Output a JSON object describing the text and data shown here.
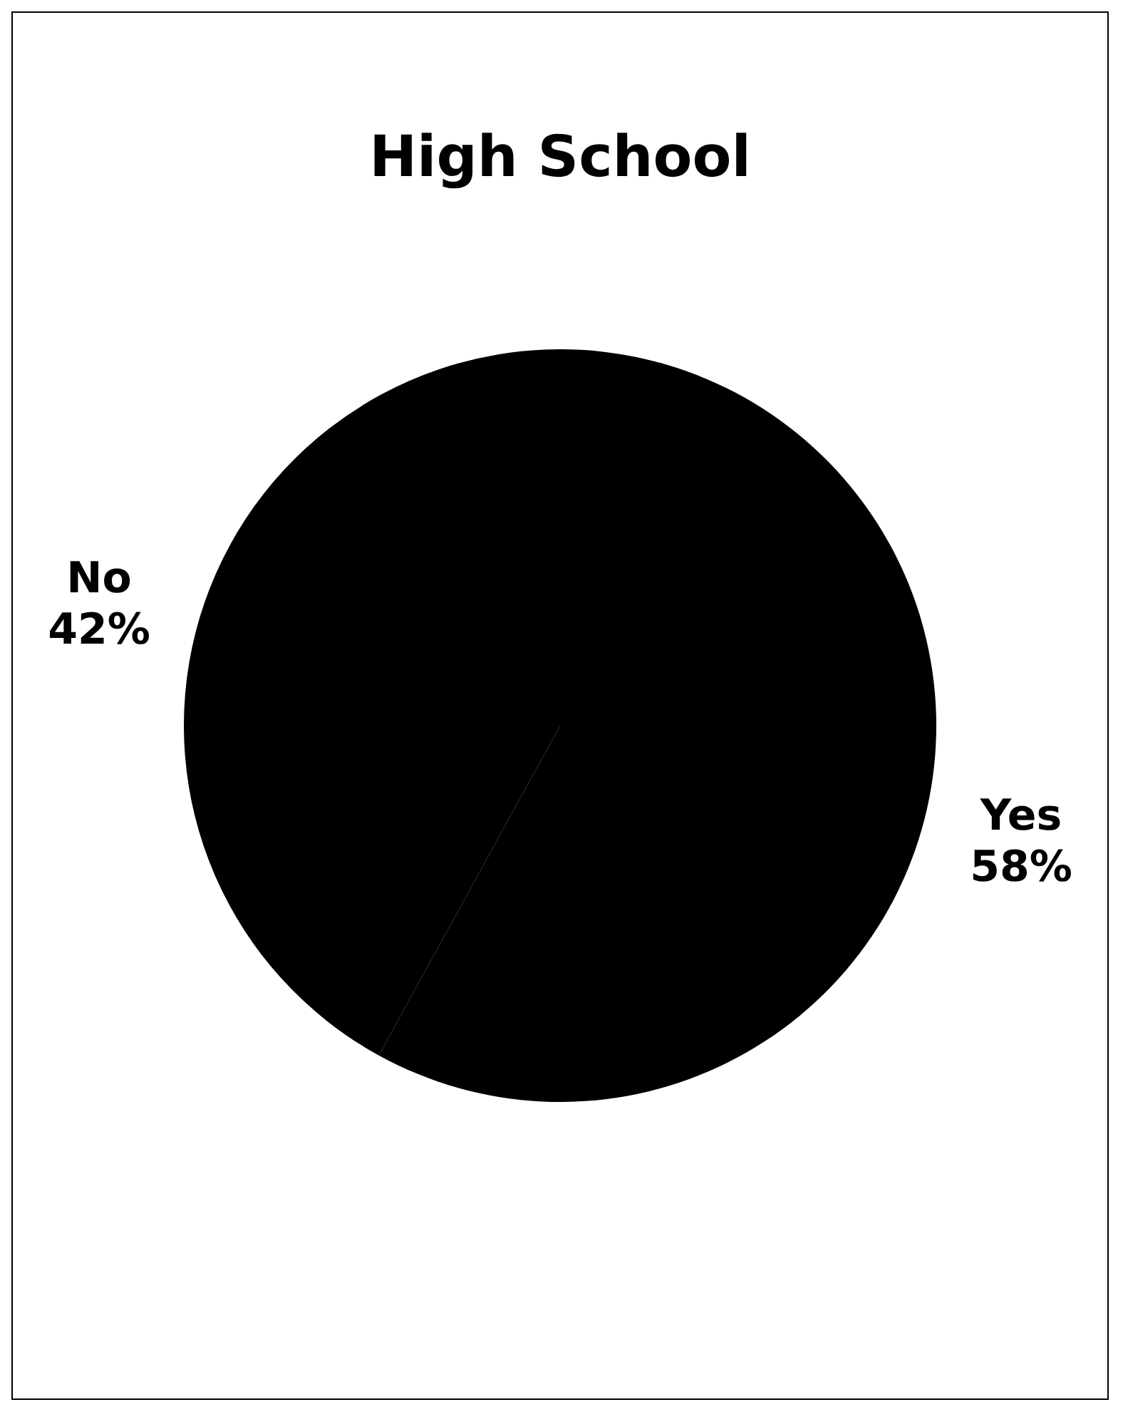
{
  "chart_data": {
    "type": "pie",
    "title": "High School",
    "categories": [
      "Yes",
      "No"
    ],
    "values": [
      58,
      42
    ],
    "colors": [
      "#000000",
      "#000000"
    ],
    "value_labels": [
      "58%",
      "42%"
    ],
    "legend": false
  }
}
